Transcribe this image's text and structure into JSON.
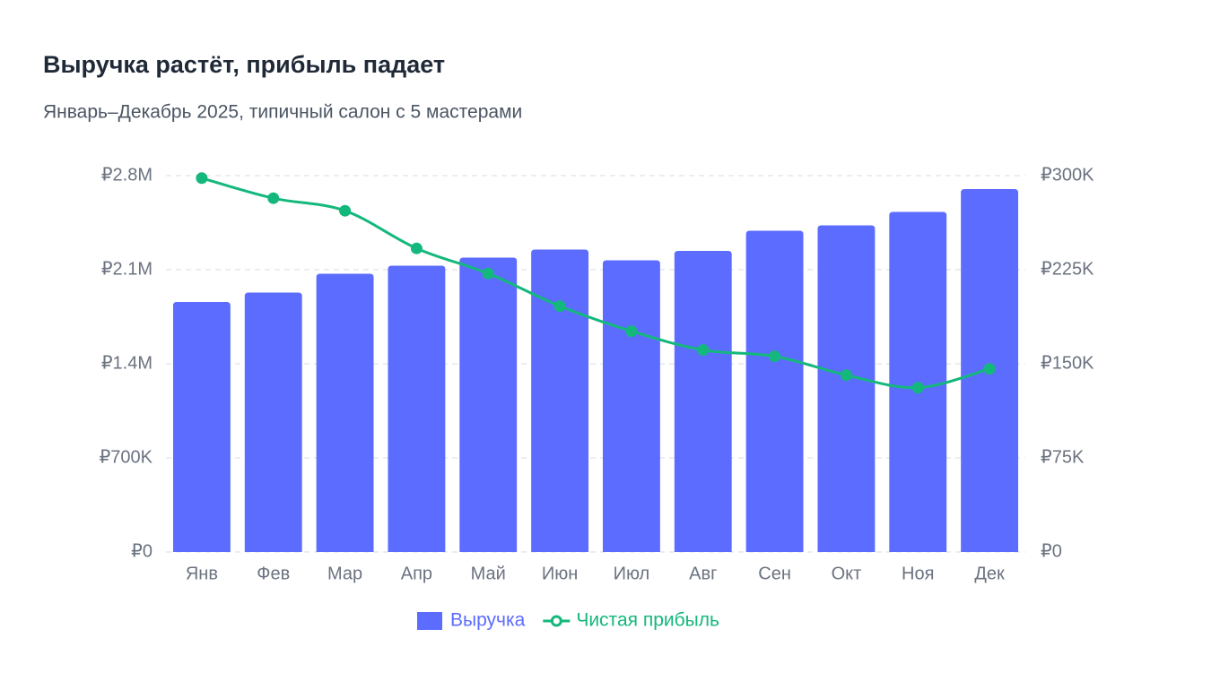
{
  "chart_data": {
    "type": "bar",
    "title": "Выручка растёт, прибыль падает",
    "subtitle": "Январь–Декабрь 2025, типичный салон с 5 мастерами",
    "categories": [
      "Янв",
      "Фев",
      "Мар",
      "Апр",
      "Май",
      "Июн",
      "Июл",
      "Авг",
      "Сен",
      "Окт",
      "Ноя",
      "Дек"
    ],
    "series": [
      {
        "name": "Выручка",
        "type": "bar",
        "color": "#5c6cff",
        "values": [
          1860000,
          1930000,
          2070000,
          2130000,
          2190000,
          2250000,
          2170000,
          2240000,
          2390000,
          2430000,
          2530000,
          2700000
        ]
      },
      {
        "name": "Чистая прибыль",
        "type": "line",
        "axis": "y2",
        "color": "#14b87c",
        "values": [
          298000,
          282000,
          272000,
          242000,
          222000,
          196000,
          176000,
          161000,
          156000,
          141000,
          131000,
          146000
        ]
      }
    ],
    "ylim": [
      0,
      2800000
    ],
    "yticks": [
      {
        "value": 0,
        "label": "₽0"
      },
      {
        "value": 700000,
        "label": "₽700K"
      },
      {
        "value": 1400000,
        "label": "₽1.4M"
      },
      {
        "value": 2100000,
        "label": "₽2.1M"
      },
      {
        "value": 2800000,
        "label": "₽2.8M"
      }
    ],
    "y2lim": [
      0,
      300000
    ],
    "y2ticks": [
      {
        "value": 0,
        "label": "₽0"
      },
      {
        "value": 75000,
        "label": "₽75K"
      },
      {
        "value": 150000,
        "label": "₽150K"
      },
      {
        "value": 225000,
        "label": "₽225K"
      },
      {
        "value": 300000,
        "label": "₽300K"
      }
    ],
    "grid": true,
    "legend": "bottom"
  }
}
